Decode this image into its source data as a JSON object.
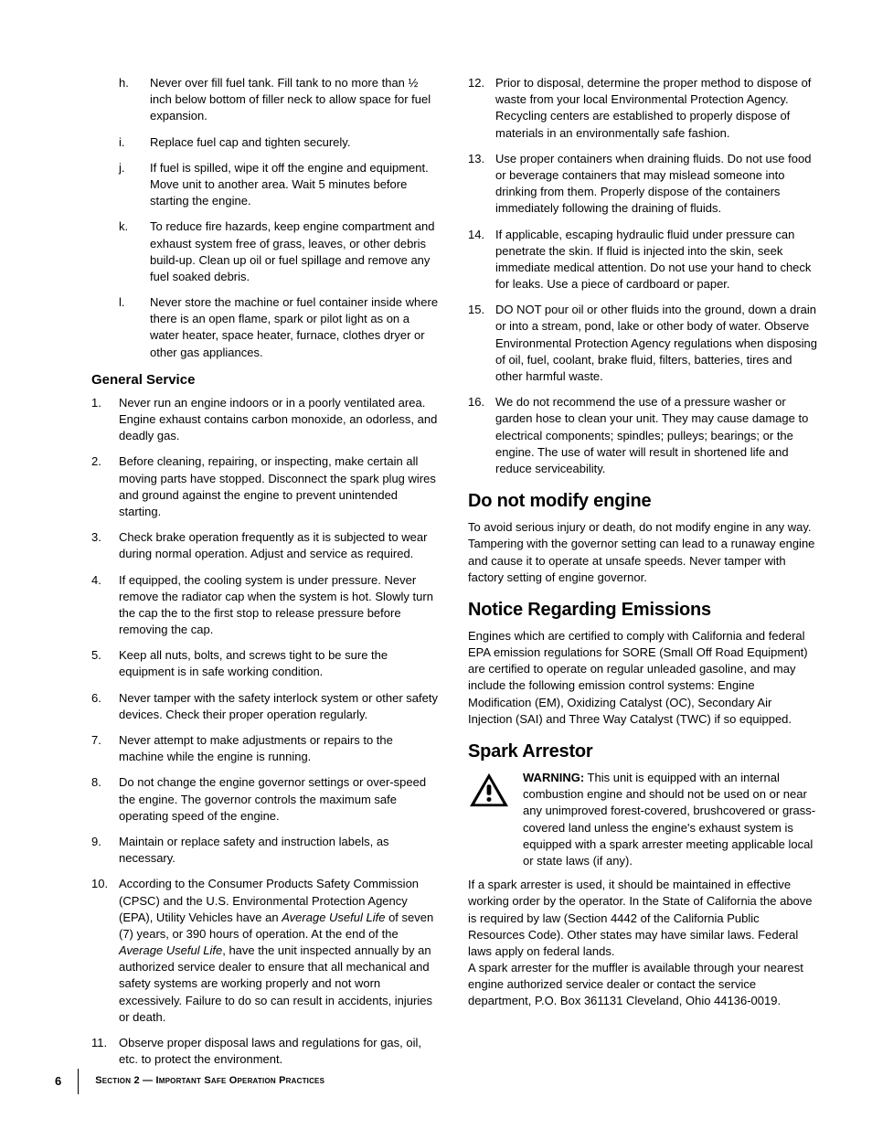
{
  "left": {
    "letters": [
      {
        "m": "h.",
        "t": "Never over fill fuel tank. Fill tank to no more than ½ inch below bottom of filler neck to allow space for fuel expansion."
      },
      {
        "m": "i.",
        "t": "Replace fuel cap and tighten securely."
      },
      {
        "m": "j.",
        "t": "If fuel is spilled, wipe it off the engine and equipment. Move unit to another area. Wait 5 minutes before starting the engine."
      },
      {
        "m": "k.",
        "t": "To reduce fire hazards, keep engine compartment and exhaust system free of grass, leaves, or other debris build-up. Clean up oil or fuel spillage and remove any fuel soaked debris."
      },
      {
        "m": "l.",
        "t": "Never store the machine or fuel container inside where there is an open flame, spark or pilot light as on a water heater, space heater, furnace, clothes dryer or other gas appliances."
      }
    ],
    "general_heading": "General Service",
    "nums": [
      {
        "m": "1.",
        "t": "Never run an engine indoors or in a poorly ventilated area. Engine exhaust contains carbon monoxide, an odorless, and deadly gas."
      },
      {
        "m": "2.",
        "t": "Before cleaning, repairing, or inspecting, make certain all moving parts have stopped. Disconnect the spark plug wires and ground against the engine to prevent unintended starting."
      },
      {
        "m": "3.",
        "t": "Check brake operation frequently as it is subjected to wear during normal operation. Adjust and service as required."
      },
      {
        "m": "4.",
        "t": "If equipped, the cooling system is under pressure. Never remove the radiator cap when the system is hot. Slowly turn the cap the to the first stop to release pressure before removing the cap."
      },
      {
        "m": "5.",
        "t": "Keep all nuts, bolts, and screws tight to be sure the equipment is in safe working condition."
      },
      {
        "m": "6.",
        "t": "Never tamper with the safety interlock system or other safety devices. Check their proper operation regularly."
      },
      {
        "m": "7.",
        "t": "Never attempt to make adjustments or repairs to the machine while the engine is running."
      },
      {
        "m": "8.",
        "t": "Do not change the engine governor settings or over-speed the engine. The governor controls the maximum safe operating speed of the engine."
      },
      {
        "m": "9.",
        "t": "Maintain or replace safety and instruction labels, as necessary."
      },
      {
        "m": "10.",
        "html": "According to the Consumer Products Safety Commission (CPSC) and the U.S. Environmental Protection Agency (EPA), Utility Vehicles have an <span class=\"italic\">Average Useful Life</span> of seven (7) years, or 390 hours of operation. At the end of the <span class=\"italic\">Average Useful Life</span>, have the unit inspected annually by an authorized service dealer to ensure that all mechanical and safety systems are working properly and not worn excessively. Failure to do so can result in accidents, injuries or death."
      },
      {
        "m": "11.",
        "t": "Observe proper disposal laws and regulations for gas, oil, etc. to protect the environment."
      }
    ]
  },
  "right": {
    "nums": [
      {
        "m": "12.",
        "t": "Prior to disposal, determine the proper method to dispose of waste from your local Environmental Protection Agency. Recycling centers are established to properly dispose of materials in an environmentally safe fashion."
      },
      {
        "m": "13.",
        "t": "Use proper containers when draining fluids. Do not use food or beverage containers that may mislead someone into drinking from them. Properly dispose of the containers immediately following the draining of fluids."
      },
      {
        "m": "14.",
        "t": "If applicable, escaping hydraulic fluid under pressure can penetrate the skin. If fluid is injected into the skin, seek immediate medical attention. Do not use your hand to check for leaks. Use a piece of cardboard or paper."
      },
      {
        "m": "15.",
        "t": "DO NOT pour oil or other fluids into the ground, down a drain or into a stream, pond, lake or other body of water. Observe Environmental Protection Agency regulations when disposing of oil, fuel, coolant, brake fluid, filters, batteries, tires and other harmful waste."
      },
      {
        "m": "16.",
        "t": "We do not recommend the use of a pressure washer or garden hose to clean your unit. They may cause damage to electrical components; spindles; pulleys; bearings; or the engine. The use of water will result in shortened life and reduce serviceability."
      }
    ],
    "h_modify": "Do not modify engine",
    "p_modify": "To avoid serious injury or death, do not modify engine in any way. Tampering with the governor setting can lead to a runaway engine and cause it to operate at unsafe speeds. Never tamper with factory setting of engine governor.",
    "h_emissions": "Notice Regarding Emissions",
    "p_emissions": "Engines which are certified to comply with California and federal EPA emission regulations for SORE (Small Off Road Equipment) are certified to operate on regular unleaded gasoline, and may include the following emission control systems: Engine Modification (EM), Oxidizing Catalyst (OC), Secondary Air Injection (SAI) and Three Way Catalyst (TWC) if so equipped.",
    "h_spark": "Spark Arrestor",
    "warning_label": "WARNING:",
    "warning_text": " This unit is equipped with an internal combustion engine and should not be used on or near any unimproved forest-covered, brushcovered or grass-covered land unless the engine's exhaust system is equipped with a spark arrester meeting applicable local or state laws (if any).",
    "p_spark1": "If a spark arrester is used, it should be maintained in effective working order by the operator. In the State of California the above is required by law (Section 4442 of the California Public Resources Code). Other states may have similar laws. Federal laws apply on federal lands.",
    "p_spark2": "A spark arrester for the muffler is available through your nearest engine authorized service dealer or contact the service department, P.O. Box 361131 Cleveland, Ohio 44136-0019."
  },
  "footer": {
    "page": "6",
    "section_word": "Section",
    "section_num": " 2 — ",
    "title": "Important Safe Operation Practices"
  }
}
